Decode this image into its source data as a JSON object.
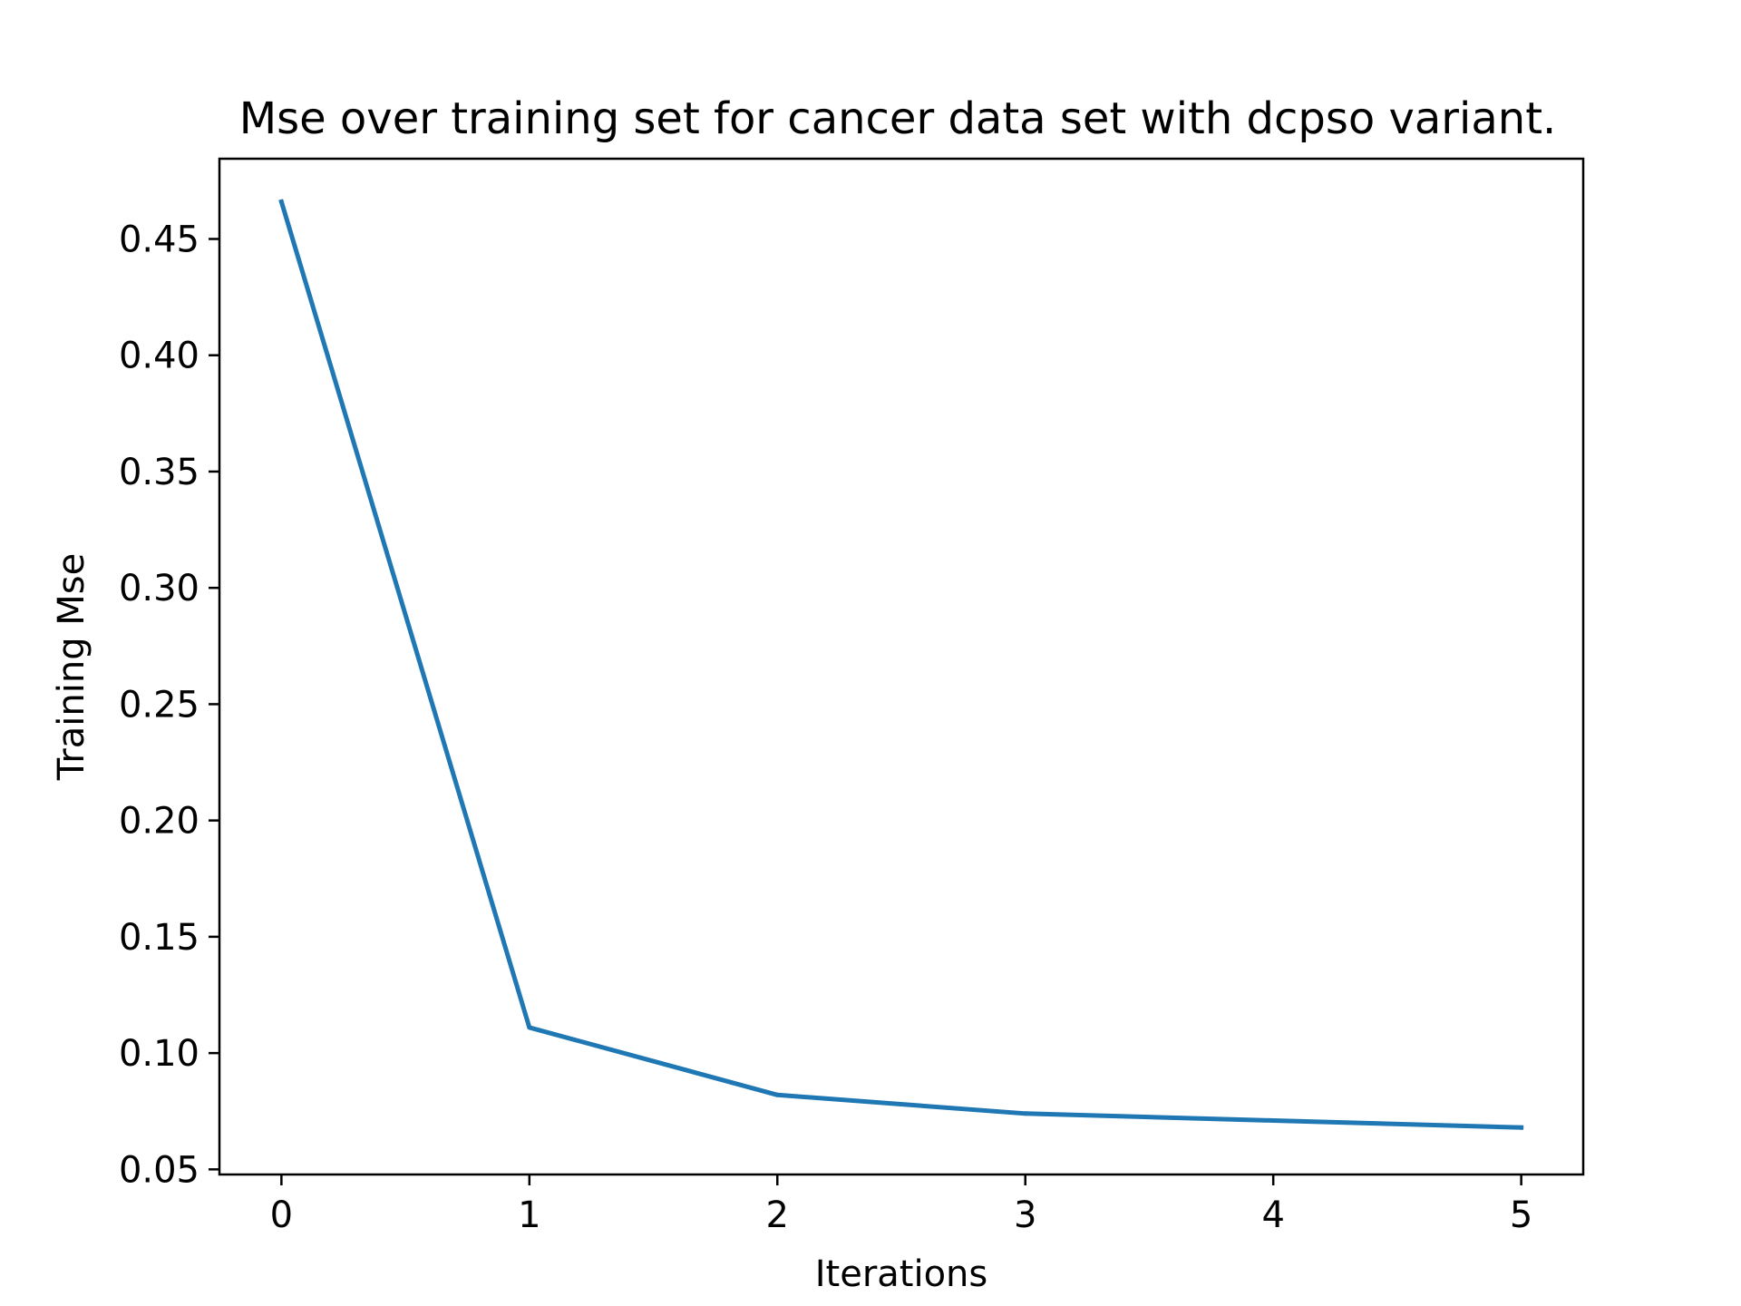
{
  "chart_data": {
    "type": "line",
    "title": "Mse over training set for cancer data set with dcpso variant.",
    "xlabel": "Iterations",
    "ylabel": "Training Mse",
    "xlim": [
      -0.25,
      5.25
    ],
    "ylim": [
      0.0478,
      0.4845
    ],
    "x_ticks": [
      0,
      1,
      2,
      3,
      4,
      5
    ],
    "x_tick_labels": [
      "0",
      "1",
      "2",
      "3",
      "4",
      "5"
    ],
    "y_ticks": [
      0.05,
      0.1,
      0.15,
      0.2,
      0.25,
      0.3,
      0.35,
      0.4,
      0.45
    ],
    "y_tick_labels": [
      "0.05",
      "0.10",
      "0.15",
      "0.20",
      "0.25",
      "0.30",
      "0.35",
      "0.40",
      "0.45"
    ],
    "grid": false,
    "legend": "none",
    "series": [
      {
        "color": "#1f77b4",
        "x": [
          0,
          1,
          2,
          3,
          4,
          5
        ],
        "y": [
          0.466,
          0.111,
          0.082,
          0.074,
          0.071,
          0.068
        ]
      }
    ]
  }
}
